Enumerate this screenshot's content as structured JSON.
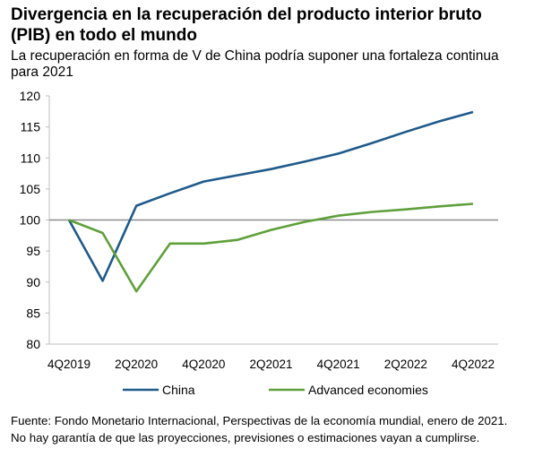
{
  "header": {
    "title": "Divergencia en la recuperación del producto interior bruto (PIB) en todo el mundo",
    "subtitle": "La recuperación en forma de V de China podría suponer una fortaleza continua para 2021"
  },
  "footnote": {
    "line1": "Fuente: Fondo Monetario Internacional, Perspectivas de la economía mundial, enero de 2021.",
    "line2": "No hay garantía de que las proyecciones, previsiones o estimaciones vayan a cumplirse."
  },
  "chart_data": {
    "type": "line",
    "x": [
      "4Q2019",
      "1Q2020",
      "2Q2020",
      "3Q2020",
      "4Q2020",
      "1Q2021",
      "2Q2021",
      "3Q2021",
      "4Q2021",
      "1Q2022",
      "2Q2022",
      "3Q2022",
      "4Q2022"
    ],
    "x_tick_labels": [
      "4Q2019",
      "2Q2020",
      "4Q2020",
      "2Q2021",
      "4Q2021",
      "2Q2022",
      "4Q2022"
    ],
    "ylim": [
      80,
      120
    ],
    "y_ticks": [
      80,
      85,
      90,
      95,
      100,
      105,
      110,
      115,
      120
    ],
    "reference_line": 100,
    "grid": false,
    "legend_position": "bottom",
    "series": [
      {
        "name": "China",
        "color": "#1f5a8b",
        "values": [
          100,
          90.2,
          102.3,
          104.3,
          106.2,
          107.2,
          108.2,
          109.4,
          110.7,
          112.4,
          114.2,
          115.9,
          117.4
        ]
      },
      {
        "name": "Advanced economies",
        "color": "#5ea03a",
        "values": [
          100,
          97.9,
          88.5,
          96.2,
          96.2,
          96.8,
          98.4,
          99.7,
          100.7,
          101.3,
          101.7,
          102.2,
          102.6
        ]
      }
    ],
    "reference_color": "#8c8c8c",
    "axis_color": "#bfbfbf"
  }
}
